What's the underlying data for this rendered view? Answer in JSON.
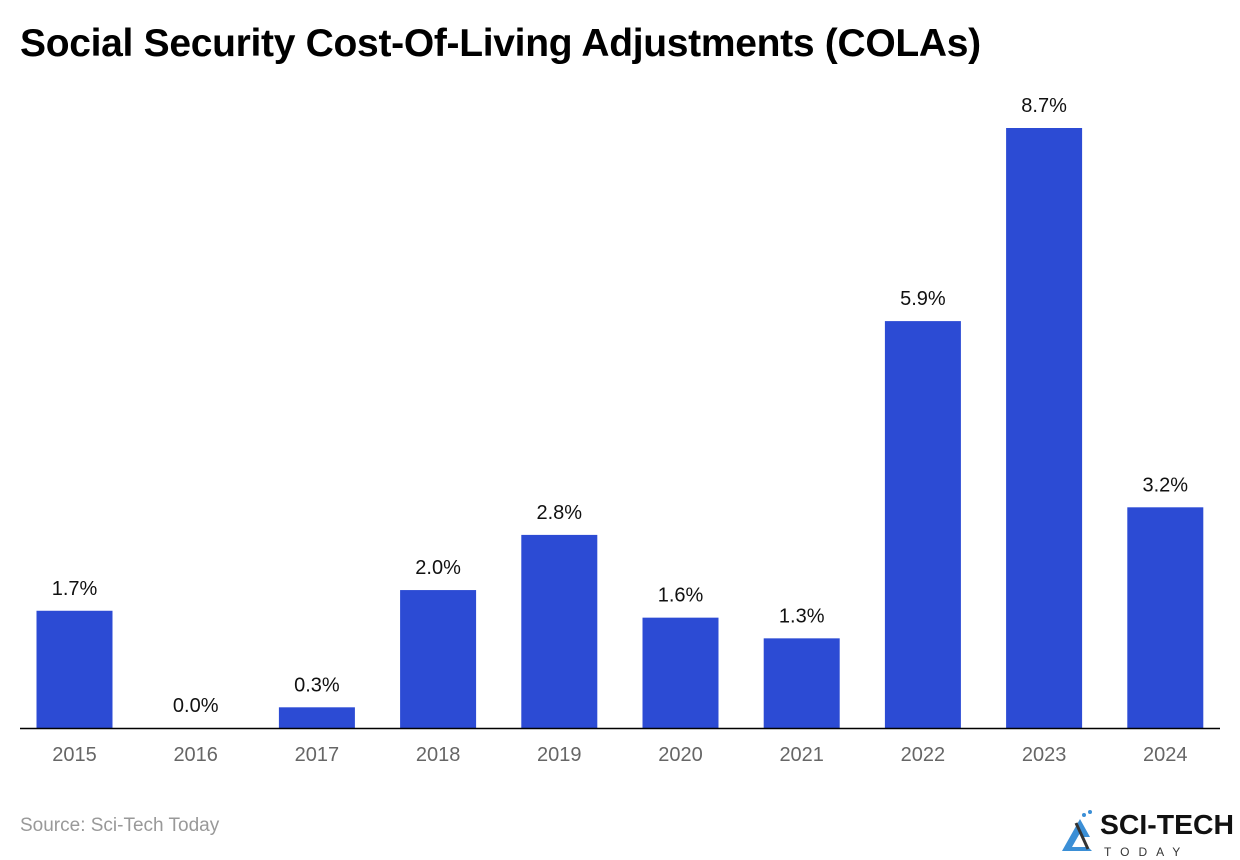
{
  "chart_data": {
    "type": "bar",
    "title": "Social Security Cost-Of-Living Adjustments (COLAs)",
    "categories": [
      "2015",
      "2016",
      "2017",
      "2018",
      "2019",
      "2020",
      "2021",
      "2022",
      "2023",
      "2024"
    ],
    "values": [
      1.7,
      0.0,
      0.3,
      2.0,
      2.8,
      1.6,
      1.3,
      5.9,
      8.7,
      3.2
    ],
    "data_labels": [
      "1.7%",
      "0.0%",
      "0.3%",
      "2.0%",
      "2.8%",
      "1.6%",
      "1.3%",
      "5.9%",
      "8.7%",
      "3.2%"
    ],
    "xlabel": "",
    "ylabel": "",
    "ylim": [
      0,
      8.7
    ],
    "grid": false,
    "bar_color": "#2c4bd4"
  },
  "source": "Source: Sci-Tech Today",
  "logo": {
    "text": "SCI-TECH",
    "subtext": "TODAY"
  }
}
